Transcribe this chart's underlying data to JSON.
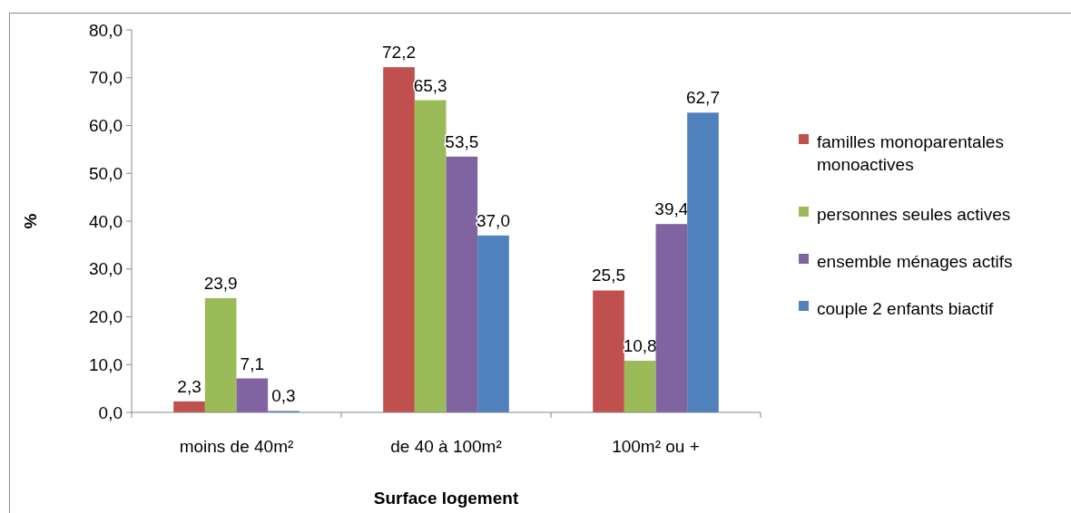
{
  "chart_data": {
    "type": "bar",
    "xlabel": "Surface logement",
    "ylabel": "%",
    "categories": [
      "moins de 40m²",
      "de 40 à 100m²",
      "100m² ou +"
    ],
    "series": [
      {
        "name": "familles monoparentales monoactives",
        "color": "#c0504d",
        "values": [
          2.3,
          72.2,
          25.5
        ],
        "value_labels": [
          "2,3",
          "72,2",
          "25,5"
        ]
      },
      {
        "name": "personnes seules actives",
        "color": "#9bbb59",
        "values": [
          23.9,
          65.3,
          10.8
        ],
        "value_labels": [
          "23,9",
          "65,3",
          "10,8"
        ]
      },
      {
        "name": "ensemble ménages actifs",
        "color": "#8064a2",
        "values": [
          7.1,
          53.5,
          39.4
        ],
        "value_labels": [
          "7,1",
          "53,5",
          "39,4"
        ]
      },
      {
        "name": "couple 2 enfants biactif",
        "color": "#4f81bd",
        "values": [
          0.3,
          37.0,
          62.7
        ],
        "value_labels": [
          "0,3",
          "37,0",
          "62,7"
        ]
      }
    ],
    "ylim": [
      0,
      80
    ],
    "yticks": [
      {
        "value": 0,
        "label": "0,0"
      },
      {
        "value": 10,
        "label": "10,0"
      },
      {
        "value": 20,
        "label": "20,0"
      },
      {
        "value": 30,
        "label": "30,0"
      },
      {
        "value": 40,
        "label": "40,0"
      },
      {
        "value": 50,
        "label": "50,0"
      },
      {
        "value": 60,
        "label": "60,0"
      },
      {
        "value": 70,
        "label": "70,0"
      },
      {
        "value": 80,
        "label": "80,0"
      }
    ],
    "grid": false,
    "legend": "right"
  }
}
